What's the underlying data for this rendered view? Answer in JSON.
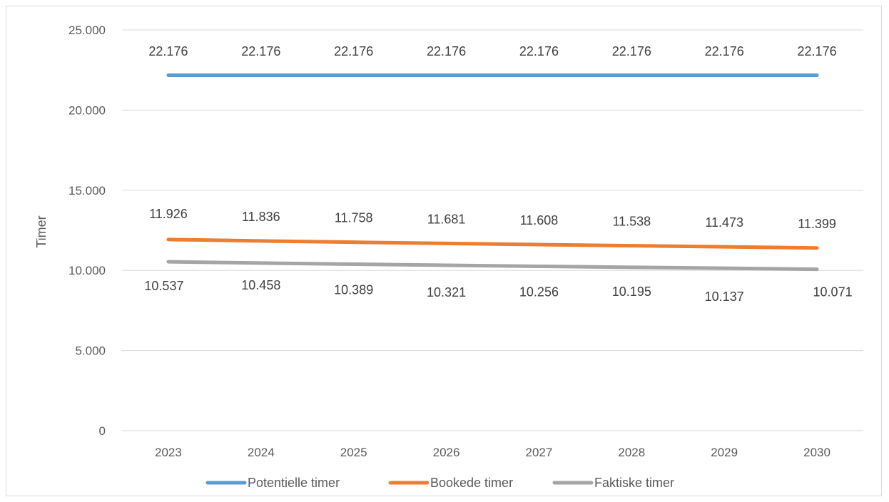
{
  "chart_data": {
    "type": "line",
    "title": "",
    "xlabel": "",
    "ylabel": "Timer",
    "categories": [
      "2023",
      "2024",
      "2025",
      "2026",
      "2027",
      "2028",
      "2029",
      "2030"
    ],
    "ylim": [
      0,
      25000
    ],
    "yticks": [
      0,
      5000,
      10000,
      15000,
      20000,
      25000
    ],
    "ytick_labels": [
      "0",
      "5.000",
      "10.000",
      "15.000",
      "20.000",
      "25.000"
    ],
    "grid": true,
    "legend_position": "bottom",
    "series": [
      {
        "name": "Potentielle timer",
        "color": "#5b9bd5",
        "values": [
          22176,
          22176,
          22176,
          22176,
          22176,
          22176,
          22176,
          22176
        ],
        "labels": [
          "22.176",
          "22.176",
          "22.176",
          "22.176",
          "22.176",
          "22.176",
          "22.176",
          "22.176"
        ]
      },
      {
        "name": "Bookede timer",
        "color": "#ed7d31",
        "values": [
          11926,
          11836,
          11758,
          11681,
          11608,
          11538,
          11473,
          11399
        ],
        "labels": [
          "11.926",
          "11.836",
          "11.758",
          "11.681",
          "11.608",
          "11.538",
          "11.473",
          "11.399"
        ]
      },
      {
        "name": "Faktiske timer",
        "color": "#a5a5a5",
        "values": [
          10537,
          10458,
          10389,
          10321,
          10256,
          10195,
          10137,
          10071
        ],
        "labels": [
          "10.537",
          "10.458",
          "10.389",
          "10.321",
          "10.256",
          "10.195",
          "10.137",
          "10.071"
        ]
      }
    ]
  }
}
